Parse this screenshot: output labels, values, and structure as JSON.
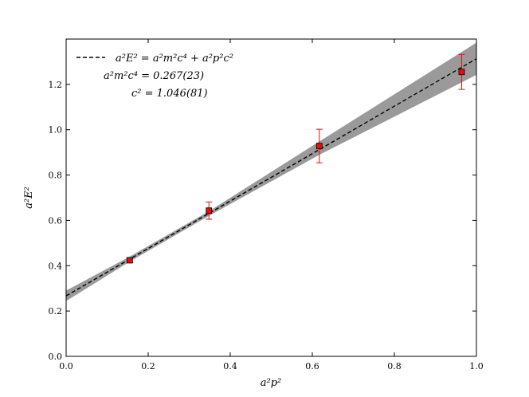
{
  "chart_data": {
    "type": "scatter",
    "xlabel": "a²p²",
    "ylabel": "a²E²",
    "xlim": [
      0.0,
      1.0
    ],
    "ylim": [
      0.0,
      1.4
    ],
    "x_ticks": [
      "0.0",
      "0.2",
      "0.4",
      "0.6",
      "0.8",
      "1.0"
    ],
    "y_ticks": [
      "0.0",
      "0.2",
      "0.4",
      "0.6",
      "0.8",
      "1.0",
      "1.2"
    ],
    "grid": false,
    "legend_position": "top-left",
    "series": [
      {
        "kind": "points_with_error",
        "color": "#e01010",
        "x": [
          0.155,
          0.348,
          0.617,
          0.964
        ],
        "y": [
          0.424,
          0.643,
          0.928,
          1.255
        ],
        "yerr": [
          0.009,
          0.038,
          0.074,
          0.077
        ]
      },
      {
        "kind": "fit_line",
        "name": "a²E² = a²m²c⁴ + a²p²c²",
        "color": "#000000",
        "intercept": 0.267,
        "slope": 1.046
      }
    ],
    "band": {
      "color": "#9a9a9a",
      "lower": [
        [
          0.0,
          0.244
        ],
        [
          0.155,
          0.418
        ],
        [
          0.348,
          0.62
        ],
        [
          0.617,
          0.889
        ],
        [
          1.0,
          1.242
        ]
      ],
      "upper": [
        [
          0.0,
          0.29
        ],
        [
          0.155,
          0.44
        ],
        [
          0.348,
          0.64
        ],
        [
          0.617,
          0.948
        ],
        [
          1.0,
          1.384
        ]
      ]
    },
    "annotations": [
      "a²m²c⁴ = 0.267(23)",
      "c² = 1.046(81)"
    ]
  }
}
